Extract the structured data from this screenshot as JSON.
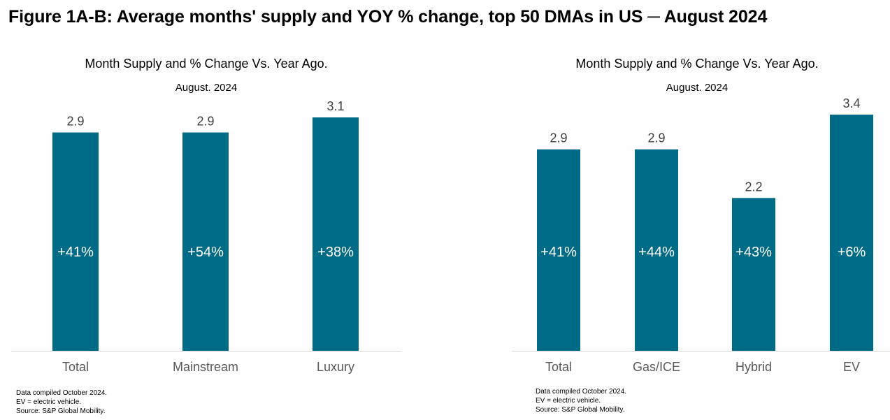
{
  "figure_title": "Figure 1A-B: Average months' supply and YOY % change, top 50 DMAs in US ─ August 2024",
  "colors": {
    "bar": "#006B86",
    "axis": "#D9D9D9",
    "value_label": "#404040",
    "inside_label": "#FFFFFF"
  },
  "chart_data": [
    {
      "type": "bar",
      "title": "Month Supply and % Change Vs. Year Ago.",
      "subtitle": "August. 2024",
      "xlabel": "",
      "ylabel": "",
      "ylim": [
        0,
        3.1
      ],
      "grid": false,
      "categories": [
        "Total",
        "Mainstream",
        "Luxury"
      ],
      "values": [
        2.9,
        2.9,
        3.1
      ],
      "value_labels": [
        "2.9",
        "2.9",
        "3.1"
      ],
      "yoy_change_labels": [
        "+41%",
        "+54%",
        "+38%"
      ],
      "notes": [
        "Data compiled October 2024.",
        "EV = electric vehicle.",
        "Source: S&P Global Mobility."
      ]
    },
    {
      "type": "bar",
      "title": "Month Supply and % Change Vs. Year Ago.",
      "subtitle": "August. 2024",
      "xlabel": "",
      "ylabel": "",
      "ylim": [
        0,
        3.4
      ],
      "grid": false,
      "categories": [
        "Total",
        "Gas/ICE",
        "Hybrid",
        "EV"
      ],
      "values": [
        2.9,
        2.9,
        2.2,
        3.4
      ],
      "value_labels": [
        "2.9",
        "2.9",
        "2.2",
        "3.4"
      ],
      "yoy_change_labels": [
        "+41%",
        "+44%",
        "+43%",
        "+6%"
      ],
      "notes": [
        "Data compiled October 2024.",
        "EV = electric vehicle.",
        "Source: S&P Global Mobility."
      ]
    }
  ]
}
